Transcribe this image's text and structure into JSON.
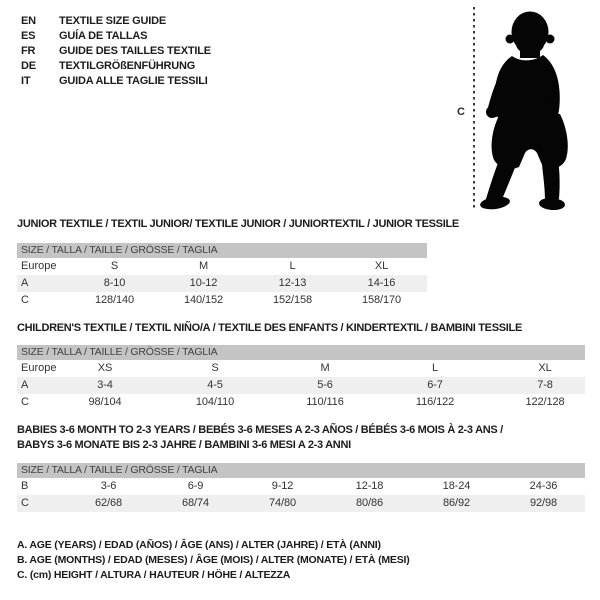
{
  "languages": [
    {
      "code": "EN",
      "title": "TEXTILE SIZE GUIDE"
    },
    {
      "code": "ES",
      "title": "GUÍA DE TALLAS"
    },
    {
      "code": "FR",
      "title": "GUIDE DES TAILLES TEXTILE"
    },
    {
      "code": "DE",
      "title": "TEXTILGRÖßENFÜHRUNG"
    },
    {
      "code": "IT",
      "title": "GUIDA ALLE TAGLIE TESSILI"
    }
  ],
  "figure": {
    "label": "C",
    "icon": "baby-silhouette"
  },
  "tables": [
    {
      "title_lines": [
        "JUNIOR TEXTILE / TEXTIL JUNIOR/ TEXTILE JUNIOR / JUNIORTEXTIL / JUNIOR TESSILE"
      ],
      "header": "SIZE / TALLA / TAILLE / GRÖSSE / TAGLIA",
      "rows": [
        {
          "label": "Europe",
          "values": [
            "S",
            "M",
            "L",
            "XL"
          ],
          "shaded": false
        },
        {
          "label": "A",
          "values": [
            "8-10",
            "10-12",
            "12-13",
            "14-16"
          ],
          "shaded": true
        },
        {
          "label": "C",
          "values": [
            "128/140",
            "140/152",
            "152/158",
            "158/170"
          ],
          "shaded": false
        }
      ]
    },
    {
      "title_lines": [
        "CHILDREN'S TEXTILE / TEXTIL NIÑO/A / TEXTILE DES ENFANTS / KINDERTEXTIL / BAMBINI TESSILE"
      ],
      "header": "SIZE / TALLA / TAILLE / GRÖSSE / TAGLIA",
      "rows": [
        {
          "label": "Europe",
          "values": [
            "XS",
            "S",
            "M",
            "L",
            "XL"
          ],
          "shaded": false
        },
        {
          "label": "A",
          "values": [
            "3-4",
            "4-5",
            "5-6",
            "6-7",
            "7-8"
          ],
          "shaded": true
        },
        {
          "label": "C",
          "values": [
            "98/104",
            "104/110",
            "110/116",
            "116/122",
            "122/128"
          ],
          "shaded": false
        }
      ]
    },
    {
      "title_lines": [
        "BABIES 3-6 MONTH TO 2-3 YEARS / BEBÉS 3-6 MESES A 2-3 AÑOS / BÉBÉS 3-6 MOIS À 2-3 ANS /",
        "BABYS 3-6 MONATE BIS 2-3 JAHRE / BAMBINI 3-6 MESI A 2-3 ANNI"
      ],
      "header": "SIZE / TALLA / TAILLE / GRÖSSE / TAGLIA",
      "rows": [
        {
          "label": "B",
          "values": [
            "3-6",
            "6-9",
            "9-12",
            "12-18",
            "18-24",
            "24-36"
          ],
          "shaded": false
        },
        {
          "label": "C",
          "values": [
            "62/68",
            "68/74",
            "74/80",
            "80/86",
            "86/92",
            "92/98"
          ],
          "shaded": true
        }
      ]
    }
  ],
  "footnotes": [
    "A. AGE (YEARS) / EDAD (AÑOS) / ÂGE (ANS) / ALTER (JAHRE) / ETÀ (ANNI)",
    "B. AGE (MONTHS) / EDAD (MESES) / ÂGE (MOIS) / ALTER (MONATE) / ETÀ (MESI)",
    "C. (cm) HEIGHT / ALTURA / HAUTEUR / HÖHE / ALTEZZA"
  ],
  "colors": {
    "header_bar": "#c4c4c4",
    "row_shaded": "#efefef",
    "silhouette": "#050505",
    "measure_line": "#3a3a3a"
  }
}
